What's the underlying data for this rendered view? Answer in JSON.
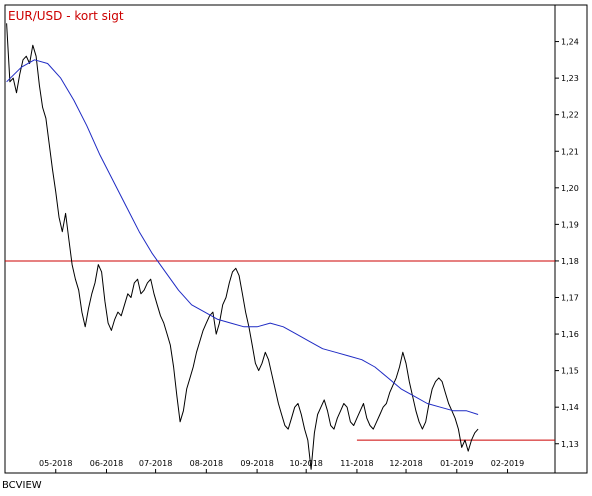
{
  "chart_data": {
    "type": "line",
    "title": "EUR/USD - kort sigt",
    "title_color": "#cc0000",
    "source_label": "BCVIEW",
    "ylim": [
      1.122,
      1.25
    ],
    "y_ticks": [
      "1,13",
      "1,14",
      "1,15",
      "1,16",
      "1,17",
      "1,18",
      "1,19",
      "1,20",
      "1,21",
      "1,22",
      "1,23",
      "1,24"
    ],
    "x_ticks": [
      {
        "label": "05-2018",
        "day": 31
      },
      {
        "label": "06-2018",
        "day": 62
      },
      {
        "label": "07-2018",
        "day": 92
      },
      {
        "label": "08-2018",
        "day": 123
      },
      {
        "label": "09-2018",
        "day": 154
      },
      {
        "label": "10-2018",
        "day": 184
      },
      {
        "label": "11-2018",
        "day": 215
      },
      {
        "label": "12-2018",
        "day": 245
      },
      {
        "label": "01-2019",
        "day": 276
      },
      {
        "label": "02-2019",
        "day": 307
      }
    ],
    "x_domain_days": [
      0,
      336
    ],
    "grid": false,
    "series": [
      {
        "color": "#000000",
        "points": [
          [
            1,
            1.245
          ],
          [
            3,
            1.229
          ],
          [
            5,
            1.23
          ],
          [
            7,
            1.226
          ],
          [
            9,
            1.231
          ],
          [
            11,
            1.235
          ],
          [
            13,
            1.236
          ],
          [
            15,
            1.234
          ],
          [
            17,
            1.239
          ],
          [
            19,
            1.236
          ],
          [
            21,
            1.228
          ],
          [
            23,
            1.222
          ],
          [
            25,
            1.219
          ],
          [
            27,
            1.212
          ],
          [
            29,
            1.205
          ],
          [
            31,
            1.199
          ],
          [
            33,
            1.192
          ],
          [
            35,
            1.188
          ],
          [
            37,
            1.193
          ],
          [
            39,
            1.186
          ],
          [
            41,
            1.179
          ],
          [
            43,
            1.175
          ],
          [
            45,
            1.172
          ],
          [
            47,
            1.166
          ],
          [
            49,
            1.162
          ],
          [
            51,
            1.167
          ],
          [
            53,
            1.171
          ],
          [
            55,
            1.174
          ],
          [
            57,
            1.179
          ],
          [
            59,
            1.177
          ],
          [
            61,
            1.169
          ],
          [
            63,
            1.163
          ],
          [
            65,
            1.161
          ],
          [
            67,
            1.164
          ],
          [
            69,
            1.166
          ],
          [
            71,
            1.165
          ],
          [
            73,
            1.168
          ],
          [
            75,
            1.171
          ],
          [
            77,
            1.17
          ],
          [
            79,
            1.174
          ],
          [
            81,
            1.175
          ],
          [
            83,
            1.171
          ],
          [
            85,
            1.172
          ],
          [
            87,
            1.174
          ],
          [
            89,
            1.175
          ],
          [
            91,
            1.171
          ],
          [
            93,
            1.168
          ],
          [
            95,
            1.165
          ],
          [
            97,
            1.163
          ],
          [
            99,
            1.16
          ],
          [
            101,
            1.157
          ],
          [
            103,
            1.151
          ],
          [
            105,
            1.143
          ],
          [
            107,
            1.136
          ],
          [
            109,
            1.139
          ],
          [
            111,
            1.145
          ],
          [
            113,
            1.148
          ],
          [
            115,
            1.151
          ],
          [
            117,
            1.155
          ],
          [
            119,
            1.158
          ],
          [
            121,
            1.161
          ],
          [
            123,
            1.163
          ],
          [
            125,
            1.165
          ],
          [
            127,
            1.166
          ],
          [
            129,
            1.16
          ],
          [
            131,
            1.163
          ],
          [
            133,
            1.168
          ],
          [
            135,
            1.17
          ],
          [
            137,
            1.174
          ],
          [
            139,
            1.177
          ],
          [
            141,
            1.178
          ],
          [
            143,
            1.176
          ],
          [
            145,
            1.171
          ],
          [
            147,
            1.166
          ],
          [
            149,
            1.162
          ],
          [
            151,
            1.157
          ],
          [
            153,
            1.152
          ],
          [
            155,
            1.15
          ],
          [
            157,
            1.152
          ],
          [
            159,
            1.155
          ],
          [
            161,
            1.153
          ],
          [
            163,
            1.149
          ],
          [
            165,
            1.145
          ],
          [
            167,
            1.141
          ],
          [
            169,
            1.138
          ],
          [
            171,
            1.135
          ],
          [
            173,
            1.134
          ],
          [
            175,
            1.137
          ],
          [
            177,
            1.14
          ],
          [
            179,
            1.141
          ],
          [
            181,
            1.138
          ],
          [
            183,
            1.134
          ],
          [
            185,
            1.131
          ],
          [
            187,
            1.123
          ],
          [
            189,
            1.133
          ],
          [
            191,
            1.138
          ],
          [
            193,
            1.14
          ],
          [
            195,
            1.142
          ],
          [
            197,
            1.139
          ],
          [
            199,
            1.135
          ],
          [
            201,
            1.134
          ],
          [
            203,
            1.137
          ],
          [
            205,
            1.139
          ],
          [
            207,
            1.141
          ],
          [
            209,
            1.14
          ],
          [
            211,
            1.136
          ],
          [
            213,
            1.135
          ],
          [
            215,
            1.137
          ],
          [
            217,
            1.139
          ],
          [
            219,
            1.141
          ],
          [
            221,
            1.137
          ],
          [
            223,
            1.135
          ],
          [
            225,
            1.134
          ],
          [
            227,
            1.136
          ],
          [
            229,
            1.138
          ],
          [
            231,
            1.14
          ],
          [
            233,
            1.141
          ],
          [
            235,
            1.144
          ],
          [
            237,
            1.146
          ],
          [
            239,
            1.148
          ],
          [
            241,
            1.151
          ],
          [
            243,
            1.155
          ],
          [
            245,
            1.152
          ],
          [
            247,
            1.147
          ],
          [
            249,
            1.143
          ],
          [
            251,
            1.139
          ],
          [
            253,
            1.136
          ],
          [
            255,
            1.134
          ],
          [
            257,
            1.136
          ],
          [
            259,
            1.141
          ],
          [
            261,
            1.145
          ],
          [
            263,
            1.147
          ],
          [
            265,
            1.148
          ],
          [
            267,
            1.147
          ],
          [
            269,
            1.144
          ],
          [
            271,
            1.141
          ],
          [
            273,
            1.139
          ],
          [
            275,
            1.137
          ],
          [
            277,
            1.134
          ],
          [
            279,
            1.129
          ],
          [
            281,
            1.131
          ],
          [
            283,
            1.128
          ],
          [
            285,
            1.131
          ],
          [
            287,
            1.133
          ],
          [
            289,
            1.134
          ]
        ]
      },
      {
        "color": "#1f2bc4",
        "points": [
          [
            1,
            1.229
          ],
          [
            10,
            1.233
          ],
          [
            18,
            1.235
          ],
          [
            26,
            1.234
          ],
          [
            34,
            1.23
          ],
          [
            42,
            1.224
          ],
          [
            50,
            1.217
          ],
          [
            58,
            1.209
          ],
          [
            66,
            1.202
          ],
          [
            74,
            1.195
          ],
          [
            82,
            1.188
          ],
          [
            90,
            1.182
          ],
          [
            98,
            1.177
          ],
          [
            106,
            1.172
          ],
          [
            114,
            1.168
          ],
          [
            122,
            1.166
          ],
          [
            130,
            1.164
          ],
          [
            138,
            1.163
          ],
          [
            146,
            1.162
          ],
          [
            154,
            1.162
          ],
          [
            162,
            1.163
          ],
          [
            170,
            1.162
          ],
          [
            178,
            1.16
          ],
          [
            186,
            1.158
          ],
          [
            194,
            1.156
          ],
          [
            202,
            1.155
          ],
          [
            210,
            1.154
          ],
          [
            218,
            1.153
          ],
          [
            226,
            1.151
          ],
          [
            234,
            1.148
          ],
          [
            242,
            1.145
          ],
          [
            250,
            1.143
          ],
          [
            258,
            1.141
          ],
          [
            266,
            1.14
          ],
          [
            274,
            1.139
          ],
          [
            282,
            1.139
          ],
          [
            289,
            1.138
          ]
        ]
      }
    ],
    "horizontal_lines": [
      {
        "value": 1.18,
        "from_day": 0,
        "to_day": 336,
        "color": "#cc0000"
      },
      {
        "value": 1.131,
        "from_day": 215,
        "to_day": 336,
        "color": "#cc0000"
      }
    ]
  }
}
